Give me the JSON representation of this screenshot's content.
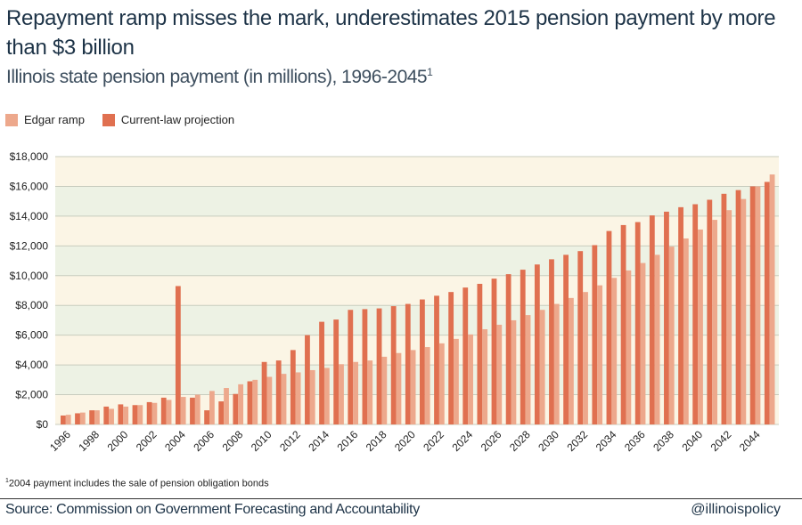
{
  "header": {
    "title": "Repayment ramp misses the mark, underestimates 2015 pension payment by more than $3 billion",
    "subtitle": "Illinois state pension payment (in millions), 1996-2045",
    "subtitle_note_mark": "1"
  },
  "legend": {
    "items": [
      {
        "label": "Edgar ramp",
        "color": "#eda88c"
      },
      {
        "label": "Current-law projection",
        "color": "#e07050"
      }
    ]
  },
  "footer": {
    "footnote_mark": "1",
    "footnote": "2004 payment includes the sale of pension obligation bonds",
    "source": "Source: Commission on Government Forecasting and Accountability",
    "handle": "@illinoispolicy"
  },
  "colors": {
    "edgar": "#eda88c",
    "current": "#e07050",
    "band_light": "#fbf5e5",
    "band_dark": "#edf2e4",
    "grid": "#c8ccbe"
  },
  "chart_data": {
    "type": "bar",
    "title": "Illinois state pension payment (in millions), 1996-2045",
    "categories": [
      1996,
      1997,
      1998,
      1999,
      2000,
      2001,
      2002,
      2003,
      2004,
      2005,
      2006,
      2007,
      2008,
      2009,
      2010,
      2011,
      2012,
      2013,
      2014,
      2015,
      2016,
      2017,
      2018,
      2019,
      2020,
      2021,
      2022,
      2023,
      2024,
      2025,
      2026,
      2027,
      2028,
      2029,
      2030,
      2031,
      2032,
      2033,
      2034,
      2035,
      2036,
      2037,
      2038,
      2039,
      2040,
      2041,
      2042,
      2043,
      2044,
      2045
    ],
    "x_tick_labels": [
      "1996",
      "1998",
      "2000",
      "2002",
      "2004",
      "2006",
      "2008",
      "2010",
      "2012",
      "2014",
      "2016",
      "2018",
      "2020",
      "2022",
      "2024",
      "2026",
      "2028",
      "2030",
      "2032",
      "2034",
      "2036",
      "2038",
      "2040",
      "2042",
      "2044"
    ],
    "series": [
      {
        "name": "Current-law projection",
        "values": [
          600,
          750,
          950,
          1200,
          1350,
          1300,
          1500,
          1800,
          9300,
          1800,
          950,
          1550,
          2050,
          2900,
          4200,
          4300,
          5000,
          6000,
          6900,
          7050,
          7700,
          7750,
          7800,
          7950,
          8100,
          8400,
          8650,
          8900,
          9200,
          9450,
          9800,
          10100,
          10400,
          10750,
          11100,
          11400,
          11650,
          12050,
          13000,
          13400,
          13600,
          14050,
          14300,
          14600,
          14800,
          15100,
          15500,
          15750,
          16000,
          16300
        ]
      },
      {
        "name": "Edgar ramp",
        "values": [
          650,
          800,
          950,
          1050,
          1200,
          1300,
          1450,
          1650,
          1850,
          2000,
          2250,
          2450,
          2700,
          3000,
          3200,
          3400,
          3500,
          3650,
          3800,
          4050,
          4200,
          4300,
          4550,
          4800,
          5000,
          5200,
          5450,
          5750,
          6050,
          6400,
          6700,
          7000,
          7350,
          7700,
          8100,
          8500,
          8900,
          9350,
          9850,
          10350,
          10850,
          11400,
          11950,
          12500,
          13100,
          13750,
          14400,
          15150,
          16000,
          16800
        ]
      }
    ],
    "y_tick_labels": [
      "$0",
      "$2,000",
      "$4,000",
      "$6,000",
      "$8,000",
      "$10,000",
      "$12,000",
      "$14,000",
      "$16,000",
      "$18,000"
    ],
    "ylim": [
      0,
      18000
    ],
    "grid": true,
    "legend_position": "top-left"
  }
}
